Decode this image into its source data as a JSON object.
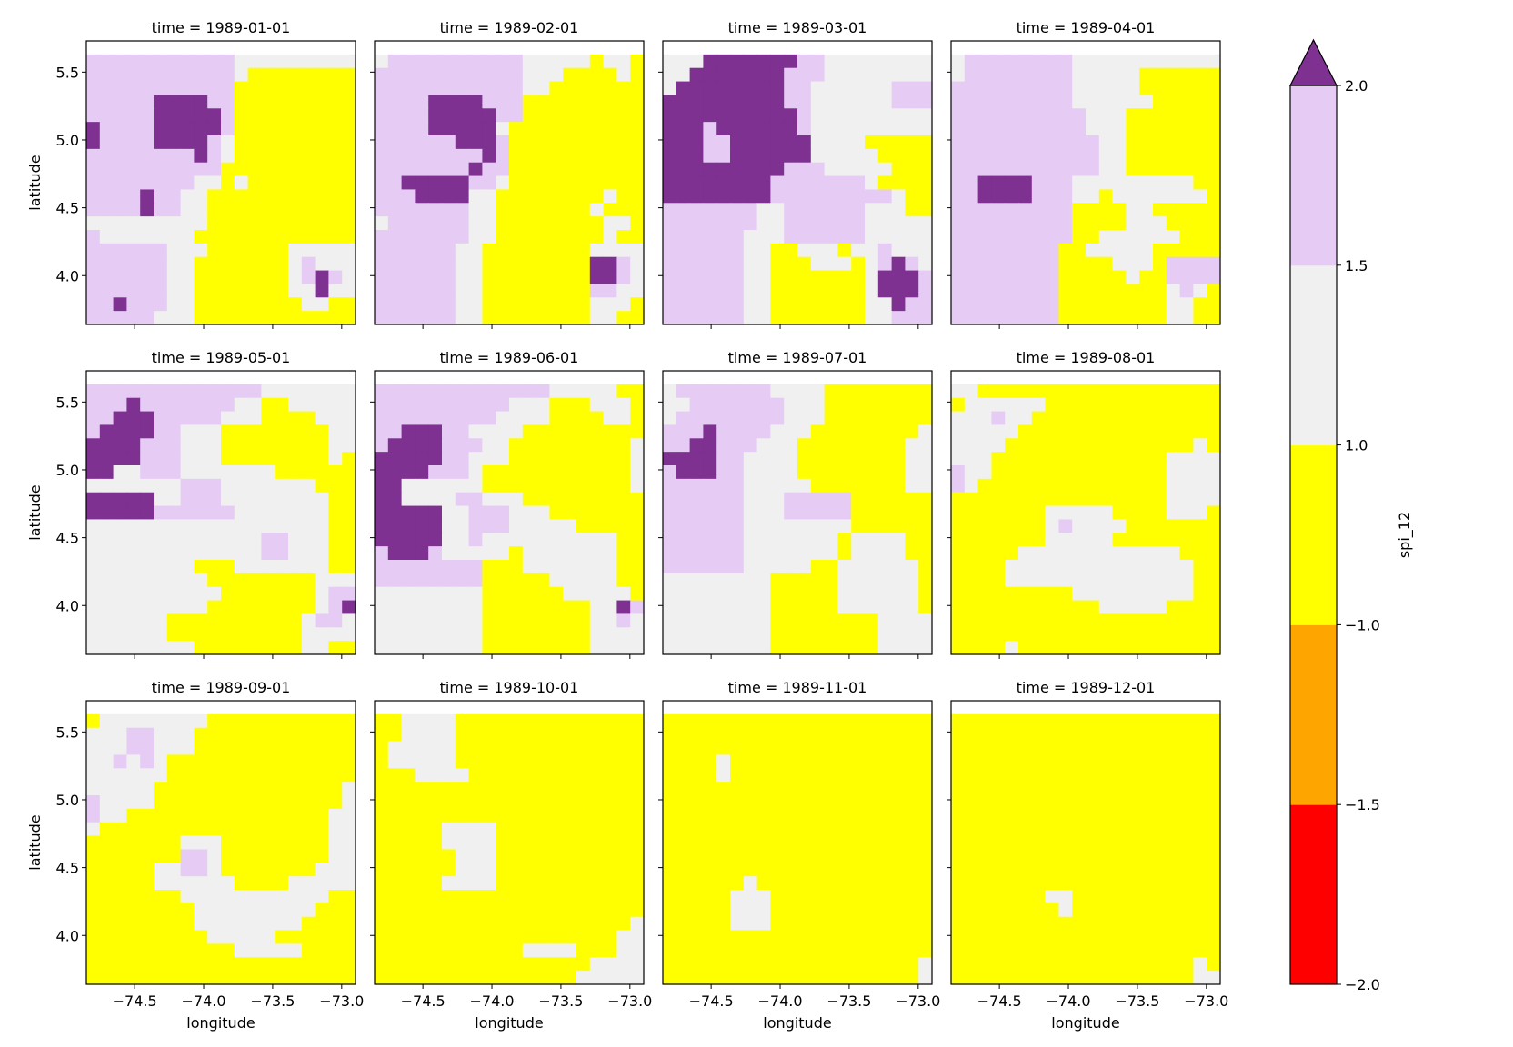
{
  "chart_data": {
    "type": "heatmap",
    "layout": "faceted grid, 3 rows x 4 columns, shared colorbar on the right",
    "xlabel": "longitude",
    "ylabel": "latitude",
    "xlim": [
      -74.85,
      -72.9
    ],
    "ylim": [
      3.64,
      5.73
    ],
    "xticks": [
      -74.5,
      -74.0,
      -73.5,
      -73.0
    ],
    "xtick_labels": [
      "−74.5",
      "−74.0",
      "−73.5",
      "−73.0"
    ],
    "yticks": [
      4.0,
      4.5,
      5.0,
      5.5
    ],
    "ytick_labels": [
      "4.0",
      "4.5",
      "5.0",
      "5.5"
    ],
    "grid": false,
    "grid_shape": {
      "rows": 21,
      "cols": 20
    },
    "cell_encoding": "one string per latitude row from north (top) to south; characters west to east: D = spi_12 >= 2.0 (dark purple), L = 1.5..2.0 (light purple), G = 1.0..1.5 (grey), Y = -1.0..1.0 (yellow), W = outside data domain",
    "colorbar": {
      "label": "spi_12",
      "extend": "max",
      "boundaries": [
        -2.0,
        -1.5,
        -1.0,
        1.0,
        1.5,
        2.0
      ],
      "tick_labels": [
        "−2.0",
        "−1.5",
        "−1.0",
        "1.0",
        "1.5",
        "2.0"
      ],
      "colors": [
        "#ff0000",
        "#ffa500",
        "#ffff00",
        "#f0f0f0",
        "#e6ccf5",
        "#7f3191"
      ],
      "extend_color": "#7f3191"
    },
    "panels": [
      {
        "title": "time = 1989-01-01",
        "cells": [
          "WWWWWWWWWWWWWWWWWWWW",
          "LLLLLLLLLLLGGGGGGGGG",
          "LLLLLLLLLLLGYYYYYYYY",
          "LLLLLLLLLLLYYYYYYYYY",
          "LLLLLDDDDLLYYYYYYYYY",
          "LLLLLDDDDDLYYYYYYYYY",
          "DLLLLDDDDDLYYYYYYYYY",
          "DLLLLDDDDLGYYYYYYYYY",
          "LLLLLLLLDLGYYYYYYYYY",
          "LLLLLLLLLLYYYYYYYYYY",
          "LLLLLLLLGGYGYYYYYYYY",
          "LLLLDLLGGYYYYYYYYYYY",
          "LLLLDLLGGYYYYYYYYYYY",
          "GGGGGGGGGYYYYYYYYYYY",
          "LGGGGGGGYYYYYYYYYYYY",
          "LLLLLLGGGYYYYYYGGGGG",
          "LLLLLLGGYYYYYYYGLGGG",
          "LLLLLLGGYYYYYYYGLDLG",
          "LLLLLLGGYYYYYYYGGDGG",
          "LLDLLLGGYYYYYYYYGGYY",
          "LLLLLGGGYYYYYYYYYYYY"
        ]
      },
      {
        "title": "time = 1989-02-01",
        "cells": [
          "WWWWWWWWWWWWWWWWWWWW",
          "GLLLLLLLLLLGGGGGYGGY",
          "LLLLLLLLLLLGGGYYYYGY",
          "LLLLLLLLLLLGGYYYYYYY",
          "LLLLDDDDLLLYYYYYYYYY",
          "LLLLDDDDDLLYYYYYYYYY",
          "LLLLDDDDDGYYYYYYYYYY",
          "LLLLLLDDDLYYYYYYYYYY",
          "LLLLLLLLDLYYYYYYYYYY",
          "LLLLLLLDLLYYYYYYYYYY",
          "LLDDDDDLLGYYYYYYYYYY",
          "LLLDDDDGGYYYYYYYYGYY",
          "LLLLLLLGGYYYYYYYGYYY",
          "GLLLLLLGGYYYYYYYYGGY",
          "LLLLLLLGGYYYYYYYYGYY",
          "LLLLLLGGYYYYYYYYGGGG",
          "LLLLLLGGYYYYYYYYDDLG",
          "LLLLLLGGYYYYYYYYDDLG",
          "LLLLLLGGYYYYYYYYLLGG",
          "LLLLLLGGYYYYYYYYGGGY",
          "LLLLLLGGYYYYYYYYGGYY"
        ]
      },
      {
        "title": "time = 1989-03-01",
        "cells": [
          "WWWWWWWWWWWWWWWWWWWW",
          "GGGDDDDDDDLLGGGGGGGG",
          "GGDDDDDDDLLLGGGGGGGG",
          "GDDDDDDDDLLGGGGGGLLL",
          "DDDDDDDDDLLGGGGGGLLL",
          "DDDDDDDDDDLGGGGGGGGG",
          "DDDLDDDDDDLGGGGGGGGG",
          "DDDLLDDDDDDGGGGYYYYY",
          "DDDLLDDDDDDGGGGGYYYY",
          "DDDDDDDDDLLLGGGGGYYY",
          "DDDDDDDDLLLLLLLGYYYY",
          "DDDDDDDDLLLLLLLLLGYY",
          "LLLLLLLGGLLLLLLGGGYY",
          "LLLLLLLGGLLLLLLGGGGG",
          "LLLLLLGGGLLLLLLGGGGG",
          "LLLLLLGGYYGGGYGGLGGG",
          "LLLLLLGGYYYGGGYGLDLG",
          "LLLLLLGGYYYYYYYGDDDL",
          "LLLLLLGGYYYYYYYGDDDL",
          "LLLLLLGGYYYYYYYGGDLL",
          "LLLLLLGGYYYYYYYGGLLL"
        ]
      },
      {
        "title": "time = 1989-04-01",
        "cells": [
          "WWWWWWWWWWWWWWWWWWWW",
          "GLLLLLLLLGGGGGGGGGGG",
          "GLLLLLLLLGGGGGYYYYYY",
          "LLLLLLLLLGGGGGYYYYYY",
          "LLLLLLLLLGGGGGGYYYYY",
          "LLLLLLLLLLGGGYYYYYYY",
          "LLLLLLLLLLGGGYYYYYYY",
          "LLLLLLLLLLLGGYYYYYYY",
          "LLLLLLLLLLLGGYYYYYYY",
          "LLLLLLLLLLLGGYYYYYYY",
          "LLDDDDLLLGGGGGGGGGYY",
          "LLDDDDLLLGGYGGGGGGGY",
          "LLLLLLLLLYYYYGGYYYYY",
          "LLLLLLLLLYYYYGGGYYYY",
          "LLLLLLLLLYYGGGGGGYYY",
          "LLLLLLLLYYGGGGGYYYYY",
          "LLLLLLLLYYYYGGGYLLLL",
          "LLLLLLLLYYYYYGYYLLLL",
          "LLLLLLLLYYYYYYYYGLGY",
          "LLLLLLLLYYYYYYYYGGYY",
          "LLLLLLLLYYYYYYYYGGYY"
        ]
      },
      {
        "title": "time = 1989-05-01",
        "cells": [
          "WWWWWWWWWWWWWWWWWWWW",
          "LLLLLLLLLLLLLGGGGGGG",
          "LLLDLLLLLLLGGYYGGGGG",
          "LLDDDLLLLLGGGYYYYGGG",
          "LDDDDLLGGGYYYYYYYYGG",
          "DDDDLLLGGGYYYYYYYYGG",
          "DDDDLLLGGGYYYYYYYYGY",
          "DDGGLLLGGGGGGGYYYYYY",
          "GGGGGGGLLLGGGGGGGYYY",
          "DDDDDGGLLLGGGGGGGGYY",
          "DDDDDLLLLLLGGGGGGGYY",
          "GGGGGGGGGGGGGGGGGGYY",
          "GGGGGGGGGGGGGLLGGGYY",
          "GGGGGGGGGGGGGLLGGGYY",
          "GGGGGGGGYYYGGGGGGGYY",
          "GGGGGGGGGYYYYYYYYGGG",
          "GGGGGGGGGGYYYYYYYGLL",
          "GGGGGGGGGYYYYYYYYGLD",
          "GGGGGGYYYYYYYYYYGLLG",
          "GGGGGGYYYYYYYYYYGGGG",
          "GGGGGGGGYYYYYYYYGGYY"
        ]
      },
      {
        "title": "time = 1989-06-01",
        "cells": [
          "WWWWWWWWWWWWWWWWWWWW",
          "LLLLLLLLLLLLLGGGGGYY",
          "LLLLLLLLLLGGGYYYGGGY",
          "LLLLLLLLLGGGGYYYYGGY",
          "LLDDDLLGGGGYYYYYYYYY",
          "LDDDDLLLGGYYYYYYYYYG",
          "DDDDDLLGGGYYYYYYYYYG",
          "DDDDLLLGYYYYYYYYYYYG",
          "DDGGGGGGYYYYYYYYYYYG",
          "DDGGGGLLGGGYYYYYYYYY",
          "DDDDDGGLLLGGGYYYYYYY",
          "DDDDDGGLLLGGGGGYYYYY",
          "DDDDDGGLGGGGGGGGGGYY",
          "LDDDLGGGGGYGGGGGGGYY",
          "LLLLLLLLYYYGGGGGGGYY",
          "LLLLLLLLYYYYYGGGGGYY",
          "GGGGGGGGYYYYYYGGGGGY",
          "GGGGGGGGYYYYYYYYGGDL",
          "GGGGGGGGYYYYYYYYGGLG",
          "GGGGGGGGYYYYYYYYGGGG",
          "GGGGGGGGYYYYYYYYGGGG"
        ]
      },
      {
        "title": "time = 1989-07-01",
        "cells": [
          "WWWWWWWWWWWWWWWWWWWW",
          "GLLLLLLLGGGGYYYYYYYY",
          "GGLLLLLLLGGGYYYYYYYY",
          "GLLLLLLLLGGGYYYYYYYY",
          "LLLDLLLLGGGYYYYYYYYG",
          "LLDDLLLGGGYYYYYYYYGG",
          "DDDDLLGGGGYYYYYYYYGG",
          "LDDDLLGGGGYYYYYYYYGG",
          "LLLLLLGGGGGYYYYYYYGG",
          "LLLLLLGGGLLLLLYYYYYY",
          "LLLLLLGGGLLLLLYYYYYY",
          "LLLLLLGGGGGGGGYYYYYY",
          "LLLLLLGGGGGGGYGGGGYY",
          "LLLLLLGGGGGGGYGGGGYY",
          "LLLLLLGGGGGYYGGGGGGY",
          "GGGGGGGGYYYYYGGGGGGY",
          "GGGGGGGGYYYYYGGGGGGY",
          "GGGGGGGGYYYYYGGGGGGY",
          "GGGGGGGGYYYYYYYYGGGG",
          "GGGGGGGGYYYYYYYYGGGG",
          "GGGGGGGGYYYYYYYYGGGG"
        ]
      },
      {
        "title": "time = 1989-08-01",
        "cells": [
          "WWWWWWWWWWWWWWWWWWWW",
          "GGYYYYYYYYYYYYYYYYYY",
          "YGGGGGGYYYYYYYYYYYYY",
          "GGGLGGYYYYYYYYYYYYYY",
          "GGGGGYYYYYYYYYYYYYYY",
          "GGGGYYYYYYYYYYYYYYGY",
          "GGGYYYYYYYYYYYYYGGGG",
          "LGGYYYYYYYYYYYYYGGGG",
          "LGYYYYYYYYYYYYYYGGGG",
          "YYYYYYYYYYYYYYYYGGGG",
          "YYYYYYYGGGGGYYYYGGGY",
          "YYYYYYYGLGGGGYYYYYYY",
          "YYYYYYYGGGGGYYYYYYYY",
          "YYYYYGGGGGGGGGGGGYYY",
          "YYYYGGGGGGGGGGGGGGYY",
          "YYYYGGGGGGGGGGGGGGYY",
          "YYYYYYYYYGGGGGGGGGYY",
          "YYYYYYYYYYYGGGGGYYYY",
          "YYYYYYYYYYYYYYYYYYYY",
          "YYYYYYYYYYYYYYYYYYYY",
          "YYYYGYYYYYYYYYYYYYYY"
        ]
      },
      {
        "title": "time = 1989-09-01",
        "cells": [
          "WWWWWWWWWWWWWWWWWWWW",
          "YGGGGGGGGYYYYYYYYYYY",
          "GGGLLGGGYYYYYYYYYYYY",
          "GGGLLGGGYYYYYYYYYYYY",
          "GGLGLGYYYYYYYYYYYYYY",
          "GGGGGGYYYYYYYYYYYYYY",
          "GGGGGYYYYYYYYYYYYYYG",
          "LGGGGYYYYYYYYYYYYYYG",
          "LGGYYYYYYYYYYYYYYYGG",
          "GYYYYYYYYYYYYYYYYYGG",
          "YYYYYYYGGGYYYYYYYYGG",
          "YYYYYYYLLGYYYYYYYYGG",
          "YYYYYGGLLGYYYYYYYGGG",
          "YYYYYGGGGGGYYYYGGGGG",
          "YYYYYYYGGGGGGGGGGGYY",
          "YYYYYYYYGGGGGGGGGYYY",
          "YYYYYYYYGGGGGGGGYYYY",
          "YYYYYYYYYGGGGGYYYYYY",
          "YYYYYYYYYYYGGGGGYYYY",
          "YYYYYYYYYYYYYYYYYYYY",
          "YYYYYYYYYYYYYYYYYYYY"
        ]
      },
      {
        "title": "time = 1989-10-01",
        "cells": [
          "WWWWWWWWWWWWWWWWWWWW",
          "YYGGGGYYYYYYYYYYYYYY",
          "YYGGGGYYYYYYYYYYYYYY",
          "YGGGGGYYYYYYYYYYYYYY",
          "YGGGGGYYYYYYYYYYYYYY",
          "YYYGGGGYYYYYYYYYYYYY",
          "YYYYYYYYYYYYYYYYYYYY",
          "YYYYYYYYYYYYYYYYYYYY",
          "YYYYYYYYYYYYYYYYYYYY",
          "YYYYYGGGGYYYYYYYYYYY",
          "YYYYYGGGGYYYYYYYYYYY",
          "YYYYYYGGGYYYYYYYYYYY",
          "YYYYYYGGGYYYYYYYYYYY",
          "YYYYYGGGGYYYYYYYYYYY",
          "YYYYYYYYYYYYYYYYYYYY",
          "YYYYYYYYYYYYYYYYYYYY",
          "YYYYYYYYYYYYYYYYYYYG",
          "YYYYYYYYYYYYYYYYYYGG",
          "YYYYYYYYYYYGGGGYYYGG",
          "YYYYYYYYYYYYYYYYGGGG",
          "YYYYYYYYYYYYYYYGGGGG"
        ]
      },
      {
        "title": "time = 1989-11-01",
        "cells": [
          "WWWWWWWWWWWWWWWWWWWW",
          "YYYYYYYYYYYYYYYYYYYY",
          "YYYYYYYYYYYYYYYYYYYY",
          "YYYYYYYYYYYYYYYYYYYY",
          "YYYYGYYYYYYYYYYYYYYY",
          "YYYYGYYYYYYYYYYYYYYY",
          "YYYYYYYYYYYYYYYYYYYY",
          "YYYYYYYYYYYYYYYYYYYY",
          "YYYYYYYYYYYYYYYYYYYY",
          "YYYYYYYYYYYYYYYYYYYY",
          "YYYYYYYYYYYYYYYYYYYY",
          "YYYYYYYYYYYYYYYYYYYY",
          "YYYYYYYYYYYYYYYYYYYY",
          "YYYYYYGYYYYYYYYYYYYY",
          "YYYYYGGGYYYYYYYYYYYY",
          "YYYYYGGGYYYYYYYYYYYY",
          "YYYYYGGGYYYYYYYYYYYY",
          "YYYYYYYYYYYYYYYYYYYY",
          "YYYYYYYYYYYYYYYYYYYY",
          "YYYYYYYYYYYYYYYYYYYG",
          "YYYYYYYYYYYYYYYYYYYG"
        ]
      },
      {
        "title": "time = 1989-12-01",
        "cells": [
          "WWWWWWWWWWWWWWWWWWWW",
          "YYYYYYYYYYYYYYYYYYYY",
          "YYYYYYYYYYYYYYYYYYYY",
          "YYYYYYYYYYYYYYYYYYYY",
          "YYYYYYYYYYYYYYYYYYYY",
          "YYYYYYYYYYYYYYYYYYYY",
          "YYYYYYYYYYYYYYYYYYYY",
          "YYYYYYYYYYYYYYYYYYYY",
          "YYYYYYYYYYYYYYYYYYYY",
          "YYYYYYYYYYYYYYYYYYYY",
          "YYYYYYYYYYYYYYYYYYYY",
          "YYYYYYYYYYYYYYYYYYYY",
          "YYYYYYYYYYYYYYYYYYYY",
          "YYYYYYYYYYYYYYYYYYYY",
          "YYYYYYYGGYYYYYYYYYYY",
          "YYYYYYYYGYYYYYYYYYYY",
          "YYYYYYYYYYYYYYYYYYYY",
          "YYYYYYYYYYYYYYYYYYYY",
          "YYYYYYYYYYYYYYYYYYYY",
          "YYYYYYYYYYYYYYYYYYGY",
          "YYYYYYYYYYYYYYYYYYGG"
        ]
      }
    ]
  }
}
